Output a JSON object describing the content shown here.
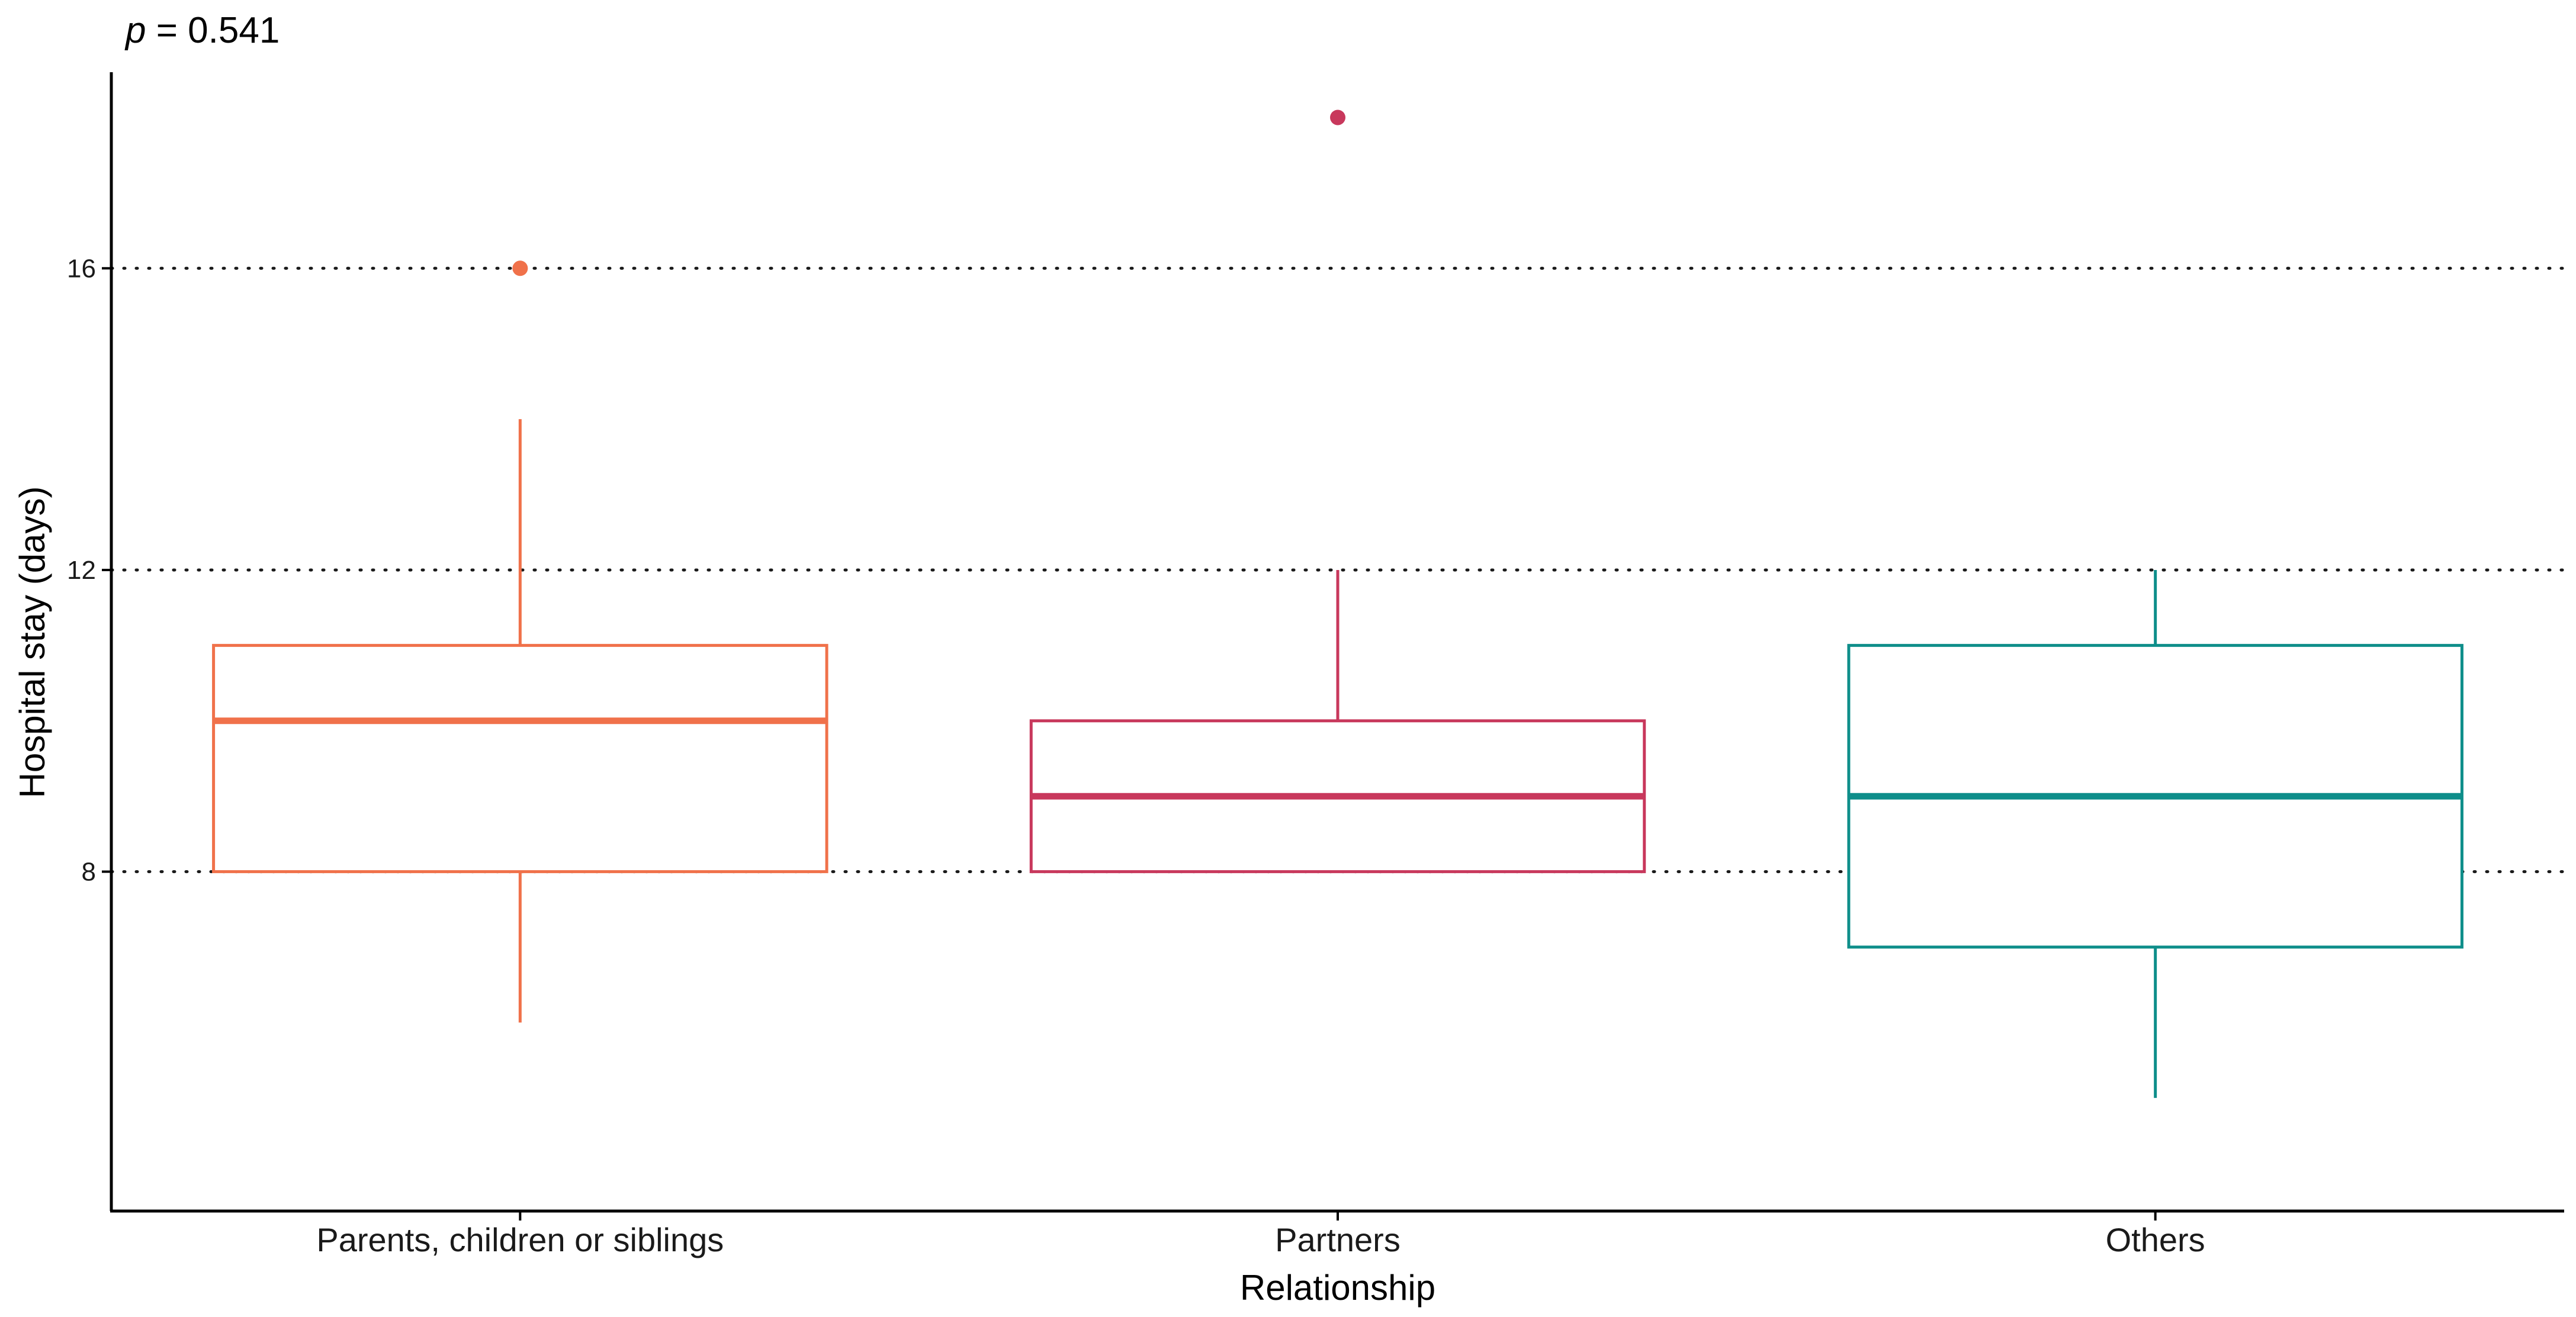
{
  "chart_data": {
    "type": "box",
    "annotation": {
      "prefix": "p",
      "text": " = 0.541"
    },
    "xlabel": "Relationship",
    "ylabel": "Hospital stay (days)",
    "categories": [
      "Parents, children or siblings",
      "Partners",
      "Others"
    ],
    "yticks": [
      8,
      12,
      16
    ],
    "ylim": [
      3.5,
      18.6
    ],
    "grid": "horizontal dotted at y ticks",
    "legend": "none",
    "boxes": [
      {
        "category": "Parents, children or siblings",
        "min": 6,
        "q1": 8,
        "median": 10,
        "q3": 11,
        "max": 14,
        "outliers": [
          16
        ],
        "color": "#F0714A"
      },
      {
        "category": "Partners",
        "min": 8,
        "q1": 8,
        "median": 9,
        "q3": 10,
        "max": 12,
        "outliers": [
          18
        ],
        "color": "#C8385C"
      },
      {
        "category": "Others",
        "min": 5,
        "q1": 7,
        "median": 9,
        "q3": 11,
        "max": 12,
        "outliers": [],
        "color": "#0E8E8A"
      }
    ]
  }
}
